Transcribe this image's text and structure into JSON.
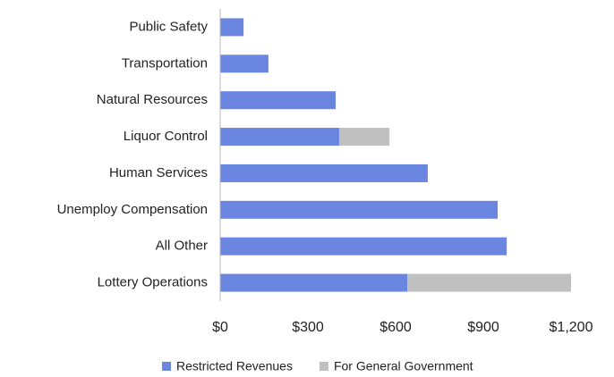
{
  "chart_data": {
    "type": "bar",
    "orientation": "horizontal",
    "stacked": true,
    "categories": [
      "Public Safety",
      "Transportation",
      "Natural Resources",
      "Liquor Control",
      "Human Services",
      "Unemploy Compensation",
      "All Other",
      "Lottery Operations"
    ],
    "series": [
      {
        "name": "Restricted Revenues",
        "color": "#6b86e0",
        "values": [
          80,
          165,
          395,
          407,
          710,
          949,
          980,
          640
        ]
      },
      {
        "name": "For General Government",
        "color": "#c0c0c0",
        "values": [
          null,
          null,
          null,
          172,
          null,
          null,
          null,
          560
        ]
      }
    ],
    "xlim": [
      0,
      1200
    ],
    "xticks": [
      {
        "value": 0,
        "label": "$0"
      },
      {
        "value": 300,
        "label": "$300"
      },
      {
        "value": 600,
        "label": "$600"
      },
      {
        "value": 900,
        "label": "$900"
      },
      {
        "value": 1200,
        "label": "$1,200"
      }
    ],
    "grid": false,
    "legend": "bottom"
  }
}
